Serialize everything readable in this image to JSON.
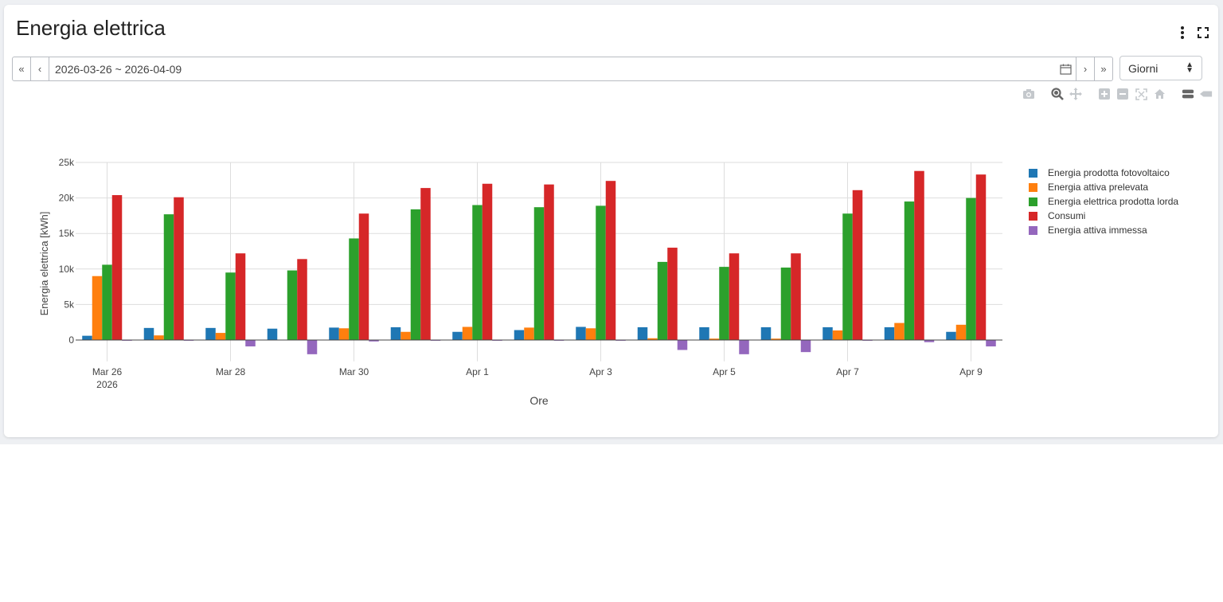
{
  "card": {
    "title": "Energia elettrica"
  },
  "toolbar": {
    "first_label": "«",
    "prev_label": "‹",
    "range_text": "2026-03-26 ~ 2026-04-09",
    "next_label": "›",
    "last_label": "»",
    "granularity": "Giorni"
  },
  "icons": {
    "menu": "kebab-menu-icon",
    "fullscreen": "fullscreen-icon",
    "calendar": "calendar-icon",
    "modebar": [
      "camera-icon",
      "zoom-icon",
      "pan-icon",
      "zoom-in-icon",
      "zoom-out-icon",
      "autoscale-icon",
      "home-icon",
      "compare-hover-icon",
      "closest-hover-icon"
    ]
  },
  "chart_data": {
    "type": "bar",
    "xlabel": "Ore",
    "ylabel": "Energia elettrica [kWh]",
    "ylim": [
      -3000,
      25000
    ],
    "yticks": [
      0,
      5000,
      10000,
      15000,
      20000,
      25000
    ],
    "ytick_labels": [
      "0",
      "5k",
      "10k",
      "15k",
      "20k",
      "25k"
    ],
    "x_tick_labels": [
      {
        "day_index": 0,
        "line1": "Mar 26",
        "line2": "2026"
      },
      {
        "day_index": 2,
        "line1": "Mar 28",
        "line2": ""
      },
      {
        "day_index": 4,
        "line1": "Mar 30",
        "line2": ""
      },
      {
        "day_index": 6,
        "line1": "Apr 1",
        "line2": ""
      },
      {
        "day_index": 8,
        "line1": "Apr 3",
        "line2": ""
      },
      {
        "day_index": 10,
        "line1": "Apr 5",
        "line2": ""
      },
      {
        "day_index": 12,
        "line1": "Apr 7",
        "line2": ""
      },
      {
        "day_index": 14,
        "line1": "Apr 9",
        "line2": ""
      }
    ],
    "categories": [
      "2026-03-26",
      "2026-03-27",
      "2026-03-28",
      "2026-03-29",
      "2026-03-30",
      "2026-03-31",
      "2026-04-01",
      "2026-04-02",
      "2026-04-03",
      "2026-04-04",
      "2026-04-05",
      "2026-04-06",
      "2026-04-07",
      "2026-04-08",
      "2026-04-09"
    ],
    "legend_position": "right",
    "grid": true,
    "series": [
      {
        "name": "Energia prodotta fotovoltaico",
        "color": "#1f77b4",
        "values": [
          600,
          1700,
          1700,
          1600,
          1750,
          1800,
          1150,
          1400,
          1850,
          1800,
          1800,
          1800,
          1800,
          1800,
          1150
        ]
      },
      {
        "name": "Energia attiva prelevata",
        "color": "#ff7f0e",
        "values": [
          9000,
          650,
          1000,
          50,
          1650,
          1150,
          1850,
          1750,
          1650,
          250,
          200,
          200,
          1350,
          2400,
          2150
        ]
      },
      {
        "name": "Energia elettrica prodotta lorda",
        "color": "#2ca02c",
        "values": [
          10600,
          17700,
          9500,
          9800,
          14300,
          18400,
          19000,
          18700,
          18900,
          11000,
          10300,
          10200,
          17800,
          19500,
          20000
        ]
      },
      {
        "name": "Consumi",
        "color": "#d62728",
        "values": [
          20400,
          20100,
          12200,
          11400,
          17800,
          21400,
          22000,
          21900,
          22400,
          13000,
          12200,
          12200,
          21100,
          23800,
          23300
        ]
      },
      {
        "name": "Energia attiva immessa",
        "color": "#9467bd",
        "values": [
          -100,
          -100,
          -900,
          -2000,
          -200,
          -100,
          -100,
          -100,
          -100,
          -1400,
          -2000,
          -1700,
          -100,
          -300,
          -900
        ]
      }
    ]
  }
}
